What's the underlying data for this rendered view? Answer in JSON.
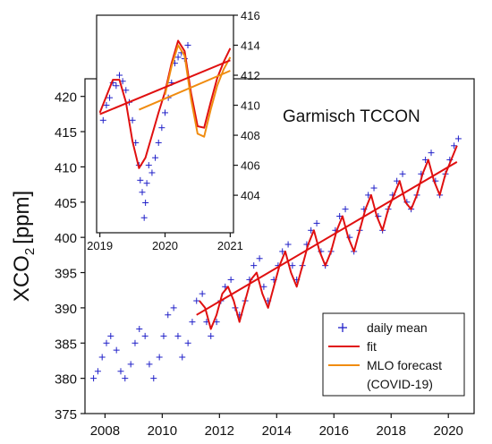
{
  "chart_data": [
    {
      "type": "scatter",
      "title": "Garmisch TCCON",
      "xlabel": "",
      "ylabel": "XCO",
      "ylabel_sub": "2",
      "ylabel_unit": "[ppm]",
      "xlim": [
        2007.3,
        2020.9
      ],
      "ylim": [
        375,
        422.5
      ],
      "x_ticks": [
        2008,
        2010,
        2012,
        2014,
        2016,
        2018,
        2020
      ],
      "y_ticks": [
        375,
        380,
        385,
        390,
        395,
        400,
        405,
        410,
        415,
        420
      ],
      "grid": false,
      "legend_position": "bottom-right",
      "series": [
        {
          "name": "daily mean",
          "marker": "+",
          "color": "#2020c8",
          "x": [
            2007.6,
            2007.75,
            2007.9,
            2008.05,
            2008.2,
            2008.4,
            2008.55,
            2008.7,
            2008.9,
            2009.05,
            2009.2,
            2009.4,
            2009.55,
            2009.7,
            2009.9,
            2010.05,
            2010.2,
            2010.4,
            2010.55,
            2010.7,
            2010.9,
            2011.05,
            2011.2,
            2011.4,
            2011.55,
            2011.7,
            2011.9,
            2012.05,
            2012.2,
            2012.4,
            2012.55,
            2012.7,
            2012.9,
            2013.05,
            2013.2,
            2013.4,
            2013.55,
            2013.7,
            2013.9,
            2014.05,
            2014.2,
            2014.4,
            2014.55,
            2014.7,
            2014.9,
            2015.05,
            2015.2,
            2015.4,
            2015.55,
            2015.7,
            2015.9,
            2016.05,
            2016.2,
            2016.4,
            2016.55,
            2016.7,
            2016.9,
            2017.05,
            2017.2,
            2017.4,
            2017.55,
            2017.7,
            2017.9,
            2018.05,
            2018.2,
            2018.4,
            2018.55,
            2018.7,
            2018.9,
            2019.05,
            2019.2,
            2019.4,
            2019.55,
            2019.7,
            2019.9,
            2020.05,
            2020.2,
            2020.35
          ],
          "y": [
            380,
            381,
            383,
            385,
            386,
            384,
            381,
            380,
            382,
            385,
            387,
            386,
            382,
            380,
            383,
            386,
            389,
            390,
            386,
            383,
            385,
            388,
            391,
            392,
            388,
            386,
            388,
            391,
            393,
            394,
            390,
            389,
            391,
            394,
            396,
            397,
            393,
            391,
            394,
            396,
            398,
            399,
            396,
            394,
            396,
            399,
            401,
            402,
            398,
            396,
            398,
            401,
            403,
            404,
            400,
            398,
            401,
            404,
            406,
            407,
            403,
            401,
            404,
            406,
            408,
            409,
            405,
            404,
            406,
            409,
            411,
            412,
            408,
            406,
            409,
            411,
            413,
            414
          ]
        },
        {
          "name": "fit",
          "color": "#e01010",
          "x": [
            2011.3,
            2011.5,
            2011.7,
            2011.9,
            2012.1,
            2012.3,
            2012.5,
            2012.7,
            2012.9,
            2013.1,
            2013.3,
            2013.5,
            2013.7,
            2013.9,
            2014.1,
            2014.3,
            2014.5,
            2014.7,
            2014.9,
            2015.1,
            2015.3,
            2015.5,
            2015.7,
            2015.9,
            2016.1,
            2016.3,
            2016.5,
            2016.7,
            2016.9,
            2017.1,
            2017.3,
            2017.5,
            2017.7,
            2017.9,
            2018.1,
            2018.3,
            2018.5,
            2018.7,
            2018.9,
            2019.1,
            2019.3,
            2019.5,
            2019.7,
            2019.9,
            2020.1,
            2020.3
          ],
          "y": [
            391,
            390,
            387,
            389,
            392,
            393,
            391,
            388,
            391,
            394,
            395,
            392,
            390,
            393,
            396,
            398,
            395,
            393,
            396,
            399,
            401,
            398,
            396,
            398,
            401,
            403,
            400,
            398,
            401,
            404,
            406,
            403,
            401,
            404,
            406,
            408,
            405,
            404,
            406,
            409,
            411,
            408,
            406,
            409,
            411,
            413
          ]
        },
        {
          "name": "fit trend",
          "color": "#e01010",
          "x": [
            2011.2,
            2020.3
          ],
          "y": [
            389.0,
            410.7
          ]
        }
      ],
      "legend_entries": [
        "daily mean",
        "fit",
        "MLO forecast",
        "(COVID-19)"
      ]
    },
    {
      "type": "line",
      "title": "",
      "xlim": [
        2018.95,
        2021.05
      ],
      "ylim": [
        401.5,
        416
      ],
      "x_ticks": [
        2019,
        2020,
        2021
      ],
      "y_ticks": [
        404,
        406,
        408,
        410,
        412,
        414,
        416
      ],
      "grid": false,
      "series": [
        {
          "name": "daily mean",
          "marker": "+",
          "color": "#2020c8",
          "x": [
            2019.05,
            2019.1,
            2019.15,
            2019.2,
            2019.25,
            2019.3,
            2019.35,
            2019.4,
            2019.45,
            2019.5,
            2019.55,
            2019.6,
            2019.62,
            2019.65,
            2019.68,
            2019.7,
            2019.72,
            2019.75,
            2019.8,
            2019.85,
            2019.9,
            2019.95,
            2020.0,
            2020.05,
            2020.1,
            2020.15,
            2020.2,
            2020.25,
            2020.3,
            2020.35
          ],
          "y": [
            409,
            410,
            410.5,
            411.5,
            411.3,
            412,
            411.6,
            411,
            410.2,
            409,
            407.5,
            406,
            405,
            404.2,
            402.5,
            403.5,
            404.8,
            406,
            405.5,
            406.5,
            407.5,
            408.5,
            409.5,
            410.5,
            411.5,
            412.8,
            413.2,
            413.5,
            413.1,
            414
          ]
        },
        {
          "name": "fit",
          "color": "#e01010",
          "x": [
            2019.0,
            2019.1,
            2019.2,
            2019.3,
            2019.4,
            2019.5,
            2019.6,
            2019.7,
            2019.8,
            2019.9,
            2020.0,
            2020.1,
            2020.2,
            2020.3,
            2020.4,
            2020.5,
            2020.6,
            2020.7,
            2020.8,
            2020.9,
            2021.0
          ],
          "y": [
            409.5,
            410.6,
            411.7,
            411.7,
            410.2,
            407.6,
            405.8,
            406.5,
            408,
            409.5,
            410.9,
            412.8,
            414.3,
            413.6,
            410.8,
            408.6,
            408.5,
            410.2,
            411.8,
            412.9,
            413.8
          ]
        },
        {
          "name": "MLO forecast",
          "color": "#f08c10",
          "x": [
            2020.0,
            2020.1,
            2020.2,
            2020.3,
            2020.4,
            2020.5,
            2020.6,
            2020.7,
            2020.8,
            2020.9,
            2021.0
          ],
          "y": [
            410.7,
            412.6,
            414.0,
            413.3,
            410.4,
            408.1,
            407.9,
            409.7,
            411.3,
            412.4,
            413.2
          ]
        },
        {
          "name": "fit trend",
          "color": "#e01010",
          "x": [
            2019.0,
            2021.0
          ],
          "y": [
            409.4,
            413.0
          ]
        },
        {
          "name": "MLO forecast trend",
          "color": "#f08c10",
          "x": [
            2019.6,
            2021.0
          ],
          "y": [
            409.7,
            412.3
          ]
        }
      ]
    }
  ]
}
